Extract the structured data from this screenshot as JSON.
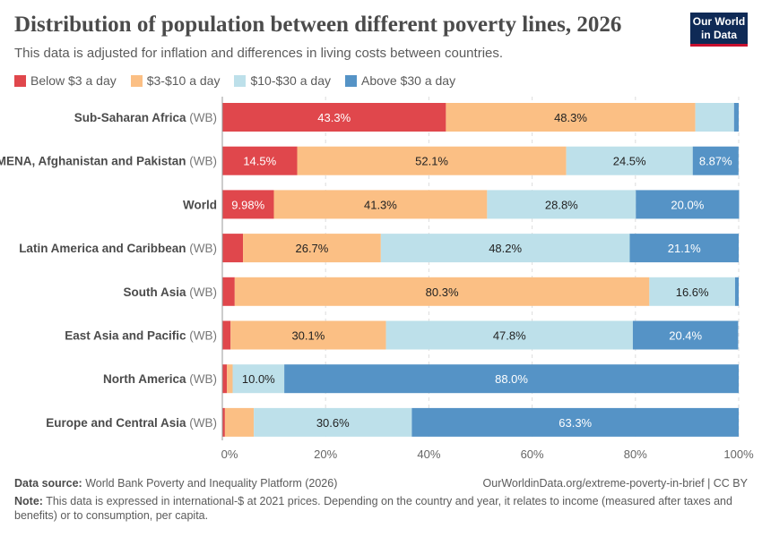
{
  "header": {
    "title": "Distribution of population between different poverty lines, 2026",
    "subtitle": "This data is adjusted for inflation and differences in living costs between countries.",
    "logo": "Our World in Data"
  },
  "footer": {
    "source_label": "Data source:",
    "source": "World Bank Poverty and Inequality Platform (2026)",
    "url": "OurWorldinData.org/extreme-poverty-in-brief | CC BY",
    "note_label": "Note:",
    "note": "This data is expressed in international-$ at 2021 prices. Depending on the country and year, it relates to income (measured after taxes and benefits) or to consumption, per capita."
  },
  "chart_data": {
    "type": "bar",
    "orientation": "horizontal",
    "stacked": true,
    "categories": [
      "Sub-Saharan Africa",
      "MENA, Afghanistan and Pakistan",
      "World",
      "Latin America and Caribbean",
      "South Asia",
      "East Asia and Pacific",
      "North America",
      "Europe and Central Asia"
    ],
    "category_suffix": [
      "(WB)",
      "(WB)",
      "",
      "(WB)",
      "(WB)",
      "(WB)",
      "(WB)",
      "(WB)"
    ],
    "series": [
      {
        "name": "Below $3 a day",
        "color": "#e0474c",
        "values": [
          43.3,
          14.5,
          9.98,
          4.0,
          2.4,
          1.6,
          0.9,
          0.5
        ],
        "labels": [
          "43.3%",
          "14.5%",
          "9.98%",
          "",
          "",
          "",
          "",
          ""
        ],
        "label_color": "#ffffff"
      },
      {
        "name": "$3-$10 a day",
        "color": "#fbbf84",
        "values": [
          48.3,
          52.1,
          41.3,
          26.7,
          80.3,
          30.1,
          1.1,
          5.6
        ],
        "labels": [
          "48.3%",
          "52.1%",
          "41.3%",
          "26.7%",
          "80.3%",
          "30.1%",
          "",
          ""
        ],
        "label_color": "#222222"
      },
      {
        "name": "$10-$30 a day",
        "color": "#bde0ea",
        "values": [
          7.5,
          24.5,
          28.8,
          48.2,
          16.6,
          47.8,
          10.0,
          30.6
        ],
        "labels": [
          "",
          "24.5%",
          "28.8%",
          "48.2%",
          "16.6%",
          "47.8%",
          "10.0%",
          "30.6%"
        ],
        "label_color": "#222222"
      },
      {
        "name": "Above $30 a day",
        "color": "#5593c6",
        "values": [
          0.9,
          8.87,
          20.0,
          21.1,
          0.7,
          20.4,
          88.0,
          63.3
        ],
        "labels": [
          "",
          "8.87%",
          "20.0%",
          "21.1%",
          "",
          "20.4%",
          "88.0%",
          "63.3%"
        ],
        "label_color": "#ffffff"
      }
    ],
    "xlim": [
      0,
      100
    ],
    "xticks": [
      "0%",
      "20%",
      "40%",
      "60%",
      "80%",
      "100%"
    ],
    "grid": true,
    "legend": "top-left"
  }
}
